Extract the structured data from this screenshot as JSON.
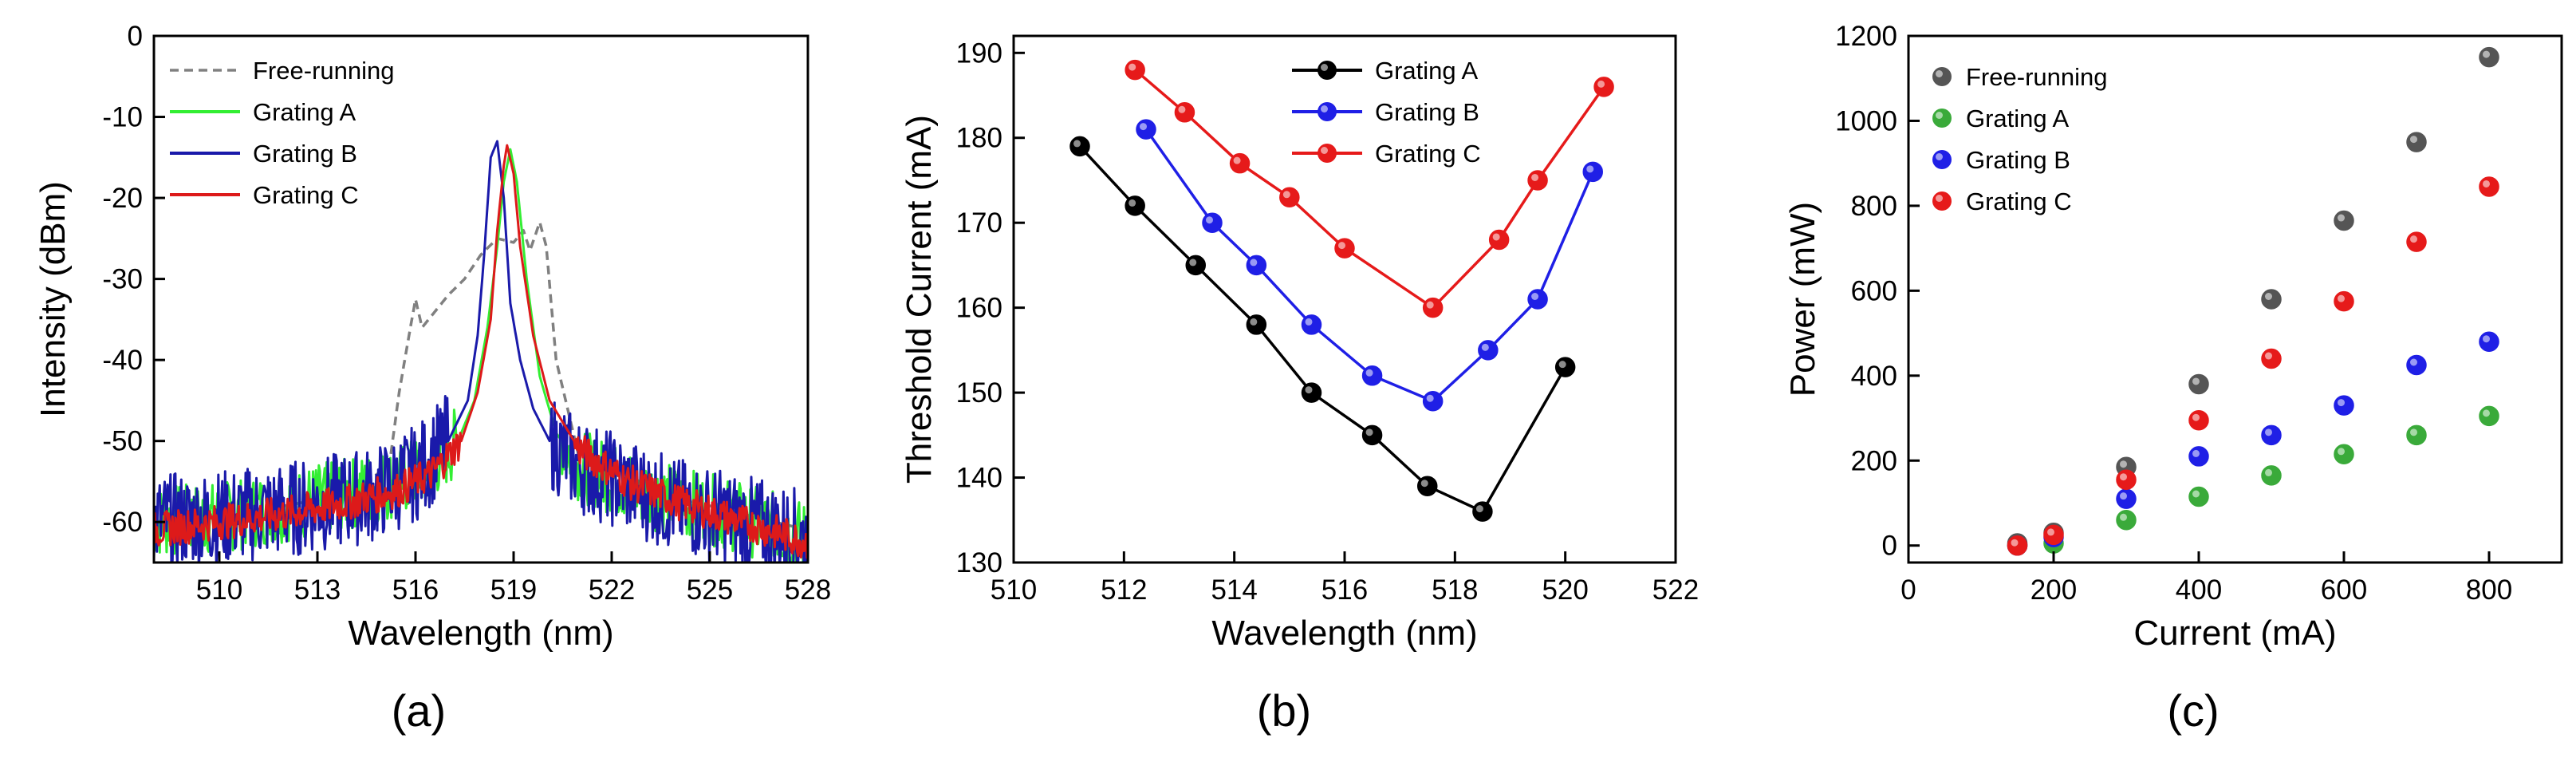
{
  "chart_data": [
    {
      "type": "line",
      "xlabel": "Wavelength (nm)",
      "ylabel": "Intensity (dBm)",
      "xlim": [
        508,
        528
      ],
      "ylim": [
        -65,
        0
      ],
      "xticks": [
        510,
        513,
        516,
        519,
        522,
        525,
        528
      ],
      "yticks": [
        0,
        -10,
        -20,
        -30,
        -40,
        -50,
        -60
      ],
      "legend_position": "top-left",
      "panel_label": "(a)",
      "colors": {
        "Free-running": "#808080",
        "Grating A": "#33ee33",
        "Grating B": "#1a1aaa",
        "Grating C": "#dd1a1a"
      },
      "series": [
        {
          "name": "Free-running",
          "style": "dashed",
          "x": [
            508,
            510,
            512,
            514,
            515.2,
            515.5,
            515.8,
            516.0,
            516.2,
            516.6,
            517.0,
            517.5,
            518.0,
            518.5,
            519.0,
            519.3,
            519.5,
            519.8,
            520.0,
            520.3,
            521,
            522,
            524,
            526,
            528
          ],
          "y": [
            -60,
            -59,
            -58,
            -56.5,
            -53,
            -44,
            -37,
            -32.5,
            -36,
            -34,
            -32,
            -30,
            -27,
            -25,
            -25.5,
            -24,
            -26.5,
            -23,
            -26,
            -40,
            -52,
            -54,
            -57,
            -59,
            -61
          ]
        },
        {
          "name": "Grating A",
          "x": [
            508,
            510,
            512,
            514,
            515.5,
            516.5,
            517.3,
            517.8,
            518.2,
            518.5,
            518.7,
            518.9,
            519.1,
            519.4,
            519.8,
            520.3,
            521,
            522.5,
            524,
            526,
            528
          ],
          "y": [
            -60,
            -59.5,
            -58,
            -56.5,
            -55,
            -53,
            -50,
            -45,
            -36,
            -26,
            -18,
            -14,
            -18,
            -30,
            -42,
            -49,
            -53,
            -55.5,
            -57.5,
            -59.5,
            -62
          ]
        },
        {
          "name": "Grating B",
          "x": [
            508,
            510,
            512,
            513.5,
            514.8,
            516,
            517,
            517.6,
            517.9,
            518.1,
            518.3,
            518.5,
            518.7,
            518.9,
            519.2,
            519.6,
            520.1,
            521,
            522.5,
            524,
            526,
            528
          ],
          "y": [
            -60,
            -59.5,
            -58.5,
            -57.5,
            -56.5,
            -54,
            -50,
            -45,
            -37,
            -27,
            -15,
            -13,
            -20,
            -33,
            -40,
            -46,
            -50,
            -53,
            -55.5,
            -58,
            -60,
            -62
          ]
        },
        {
          "name": "Grating C",
          "x": [
            508,
            510,
            512,
            514,
            515.5,
            516.5,
            517.4,
            517.9,
            518.3,
            518.5,
            518.7,
            518.8,
            519.0,
            519.2,
            519.6,
            520.1,
            521,
            522.5,
            524,
            526,
            528
          ],
          "y": [
            -61,
            -60,
            -59,
            -57.5,
            -56,
            -54,
            -50,
            -44,
            -35,
            -24,
            -16,
            -13.5,
            -17,
            -26,
            -37,
            -45,
            -51,
            -55,
            -57.5,
            -60,
            -62.5
          ]
        }
      ]
    },
    {
      "type": "line",
      "xlabel": "Wavelength (nm)",
      "ylabel": "Threshold Current (mA)",
      "xlim": [
        510,
        522
      ],
      "ylim": [
        130,
        192
      ],
      "xticks": [
        510,
        512,
        514,
        516,
        518,
        520,
        522
      ],
      "yticks": [
        130,
        140,
        150,
        160,
        170,
        180,
        190
      ],
      "legend_position": "top-right",
      "panel_label": "(b)",
      "colors": {
        "Grating A": "#000000",
        "Grating B": "#1f1fe6",
        "Grating C": "#e61a1a"
      },
      "series": [
        {
          "name": "Grating A",
          "x": [
            511.2,
            512.2,
            513.3,
            514.4,
            515.4,
            516.5,
            517.5,
            518.5,
            520.0
          ],
          "y": [
            179,
            172,
            165,
            158,
            150,
            145,
            139,
            136,
            153
          ]
        },
        {
          "name": "Grating B",
          "x": [
            512.4,
            513.6,
            514.4,
            515.4,
            516.5,
            517.6,
            518.6,
            519.5,
            520.5
          ],
          "y": [
            181,
            170,
            165,
            158,
            152,
            149,
            155,
            161,
            176
          ]
        },
        {
          "name": "Grating C",
          "x": [
            512.2,
            513.1,
            514.1,
            515.0,
            516.0,
            517.6,
            518.8,
            519.5,
            520.7
          ],
          "y": [
            188,
            183,
            177,
            173,
            167,
            160,
            168,
            175,
            186
          ]
        }
      ]
    },
    {
      "type": "scatter",
      "xlabel": "Current (mA)",
      "ylabel": "Power (mW)",
      "xlim": [
        0,
        900
      ],
      "ylim": [
        -40,
        1200
      ],
      "xticks": [
        0,
        200,
        400,
        600,
        800
      ],
      "yticks": [
        0,
        200,
        400,
        600,
        800,
        1000,
        1200
      ],
      "legend_position": "top-left",
      "panel_label": "(c)",
      "colors": {
        "Free-running": "#555555",
        "Grating A": "#3aaa3a",
        "Grating B": "#1f1fe6",
        "Grating C": "#e61a1a"
      },
      "series": [
        {
          "name": "Free-running",
          "x": [
            150,
            200,
            300,
            400,
            500,
            600,
            700,
            800
          ],
          "y": [
            5,
            30,
            185,
            380,
            580,
            765,
            950,
            1150
          ]
        },
        {
          "name": "Grating A",
          "x": [
            150,
            200,
            300,
            400,
            500,
            600,
            700,
            800
          ],
          "y": [
            0,
            5,
            60,
            115,
            165,
            215,
            260,
            305
          ]
        },
        {
          "name": "Grating B",
          "x": [
            150,
            200,
            300,
            400,
            500,
            600,
            700,
            800
          ],
          "y": [
            0,
            20,
            110,
            210,
            260,
            330,
            425,
            480
          ]
        },
        {
          "name": "Grating C",
          "x": [
            150,
            200,
            300,
            400,
            500,
            600,
            700,
            800
          ],
          "y": [
            0,
            25,
            155,
            295,
            440,
            575,
            715,
            845
          ]
        }
      ]
    }
  ]
}
